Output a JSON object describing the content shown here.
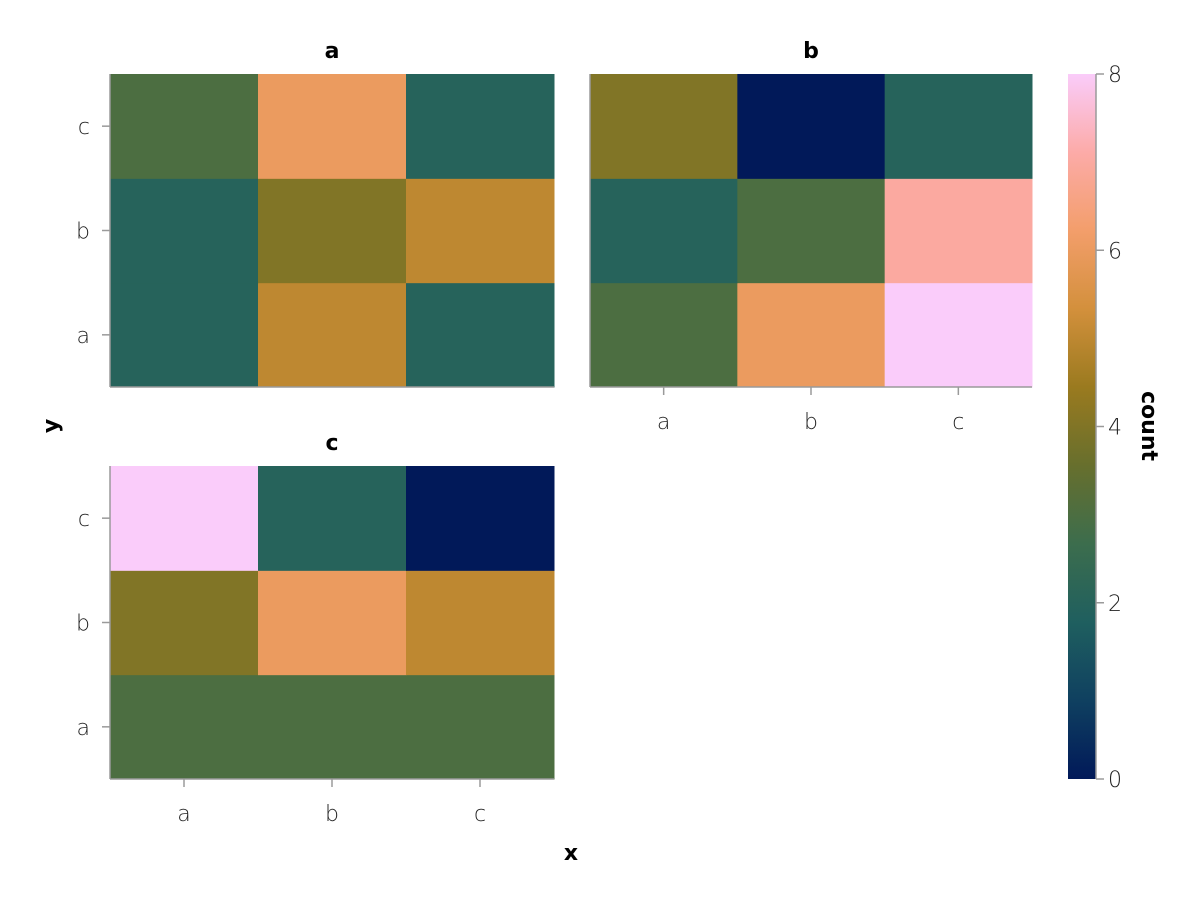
{
  "chart_data": {
    "type": "heatmap",
    "x_categories": [
      "a",
      "b",
      "c"
    ],
    "y_categories": [
      "a",
      "b",
      "c"
    ],
    "xlabel": "x",
    "ylabel": "y",
    "facets": [
      {
        "title": "a",
        "cells": [
          {
            "x": "a",
            "y": "a",
            "count": 2
          },
          {
            "x": "b",
            "y": "a",
            "count": 5
          },
          {
            "x": "c",
            "y": "a",
            "count": 2
          },
          {
            "x": "a",
            "y": "b",
            "count": 2
          },
          {
            "x": "b",
            "y": "b",
            "count": 4
          },
          {
            "x": "c",
            "y": "b",
            "count": 5
          },
          {
            "x": "a",
            "y": "c",
            "count": 3
          },
          {
            "x": "b",
            "y": "c",
            "count": 6
          },
          {
            "x": "c",
            "y": "c",
            "count": 2
          }
        ]
      },
      {
        "title": "b",
        "cells": [
          {
            "x": "a",
            "y": "a",
            "count": 3
          },
          {
            "x": "b",
            "y": "a",
            "count": 6
          },
          {
            "x": "c",
            "y": "a",
            "count": 8
          },
          {
            "x": "a",
            "y": "b",
            "count": 2
          },
          {
            "x": "b",
            "y": "b",
            "count": 3
          },
          {
            "x": "c",
            "y": "b",
            "count": 7
          },
          {
            "x": "a",
            "y": "c",
            "count": 4
          },
          {
            "x": "b",
            "y": "c",
            "count": 0
          },
          {
            "x": "c",
            "y": "c",
            "count": 2
          }
        ]
      },
      {
        "title": "c",
        "cells": [
          {
            "x": "a",
            "y": "a",
            "count": 3
          },
          {
            "x": "b",
            "y": "a",
            "count": 3
          },
          {
            "x": "c",
            "y": "a",
            "count": 3
          },
          {
            "x": "a",
            "y": "b",
            "count": 4
          },
          {
            "x": "b",
            "y": "b",
            "count": 6
          },
          {
            "x": "c",
            "y": "b",
            "count": 5
          },
          {
            "x": "a",
            "y": "c",
            "count": 8
          },
          {
            "x": "b",
            "y": "c",
            "count": 2
          },
          {
            "x": "c",
            "y": "c",
            "count": 0
          }
        ]
      }
    ],
    "colorbar": {
      "title": "count",
      "range": [
        0,
        8
      ],
      "ticks": [
        0,
        2,
        4,
        6,
        8
      ],
      "colormap": "batlow",
      "colors": [
        "#011959",
        "#0f4060",
        "#1f5f5f",
        "#3c6d4d",
        "#676f2d",
        "#9a7a1f",
        "#d3903c",
        "#f39e6b",
        "#fcaba8",
        "#faccfa"
      ]
    },
    "legend_position": "right"
  }
}
